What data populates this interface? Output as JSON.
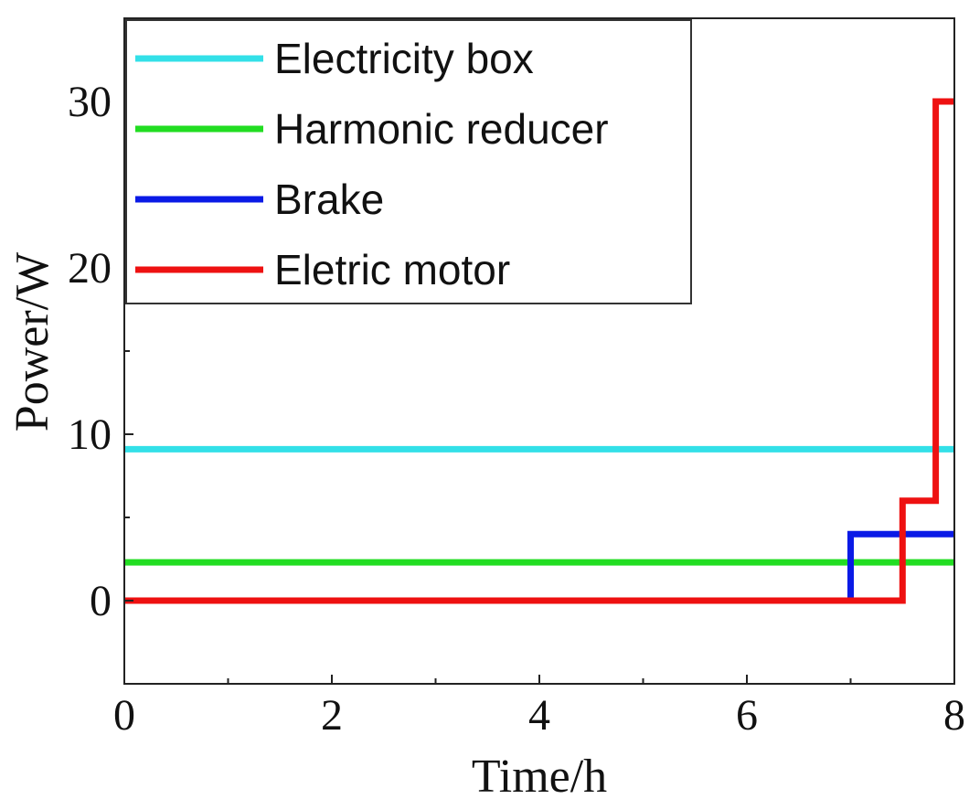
{
  "chart_data": {
    "type": "line",
    "xlabel": "Time/h",
    "ylabel": "Power/W",
    "xlim": [
      0,
      8
    ],
    "ylim": [
      -5,
      35
    ],
    "xticks": [
      0,
      2,
      4,
      6,
      8
    ],
    "xminor": [
      1,
      3,
      5,
      7
    ],
    "yticks": [
      0,
      10,
      20,
      30
    ],
    "ymajor_ticks_unlabeled": [],
    "grid": false,
    "legend_position": "top-left",
    "series": [
      {
        "name": "Electricity box",
        "color": "#33E0E8",
        "x": [
          0,
          8
        ],
        "y": [
          9.1,
          9.1
        ]
      },
      {
        "name": "Harmonic reducer",
        "color": "#22DD22",
        "x": [
          0,
          8
        ],
        "y": [
          2.3,
          2.3
        ]
      },
      {
        "name": "Brake",
        "color": "#0A1AE6",
        "x": [
          0,
          7,
          7,
          8
        ],
        "y": [
          0,
          0,
          4,
          4
        ]
      },
      {
        "name": "Eletric motor",
        "color": "#EE1111",
        "x": [
          0,
          7.5,
          7.5,
          7.82,
          7.82,
          8
        ],
        "y": [
          0,
          0,
          6,
          6,
          30,
          30
        ]
      }
    ]
  }
}
